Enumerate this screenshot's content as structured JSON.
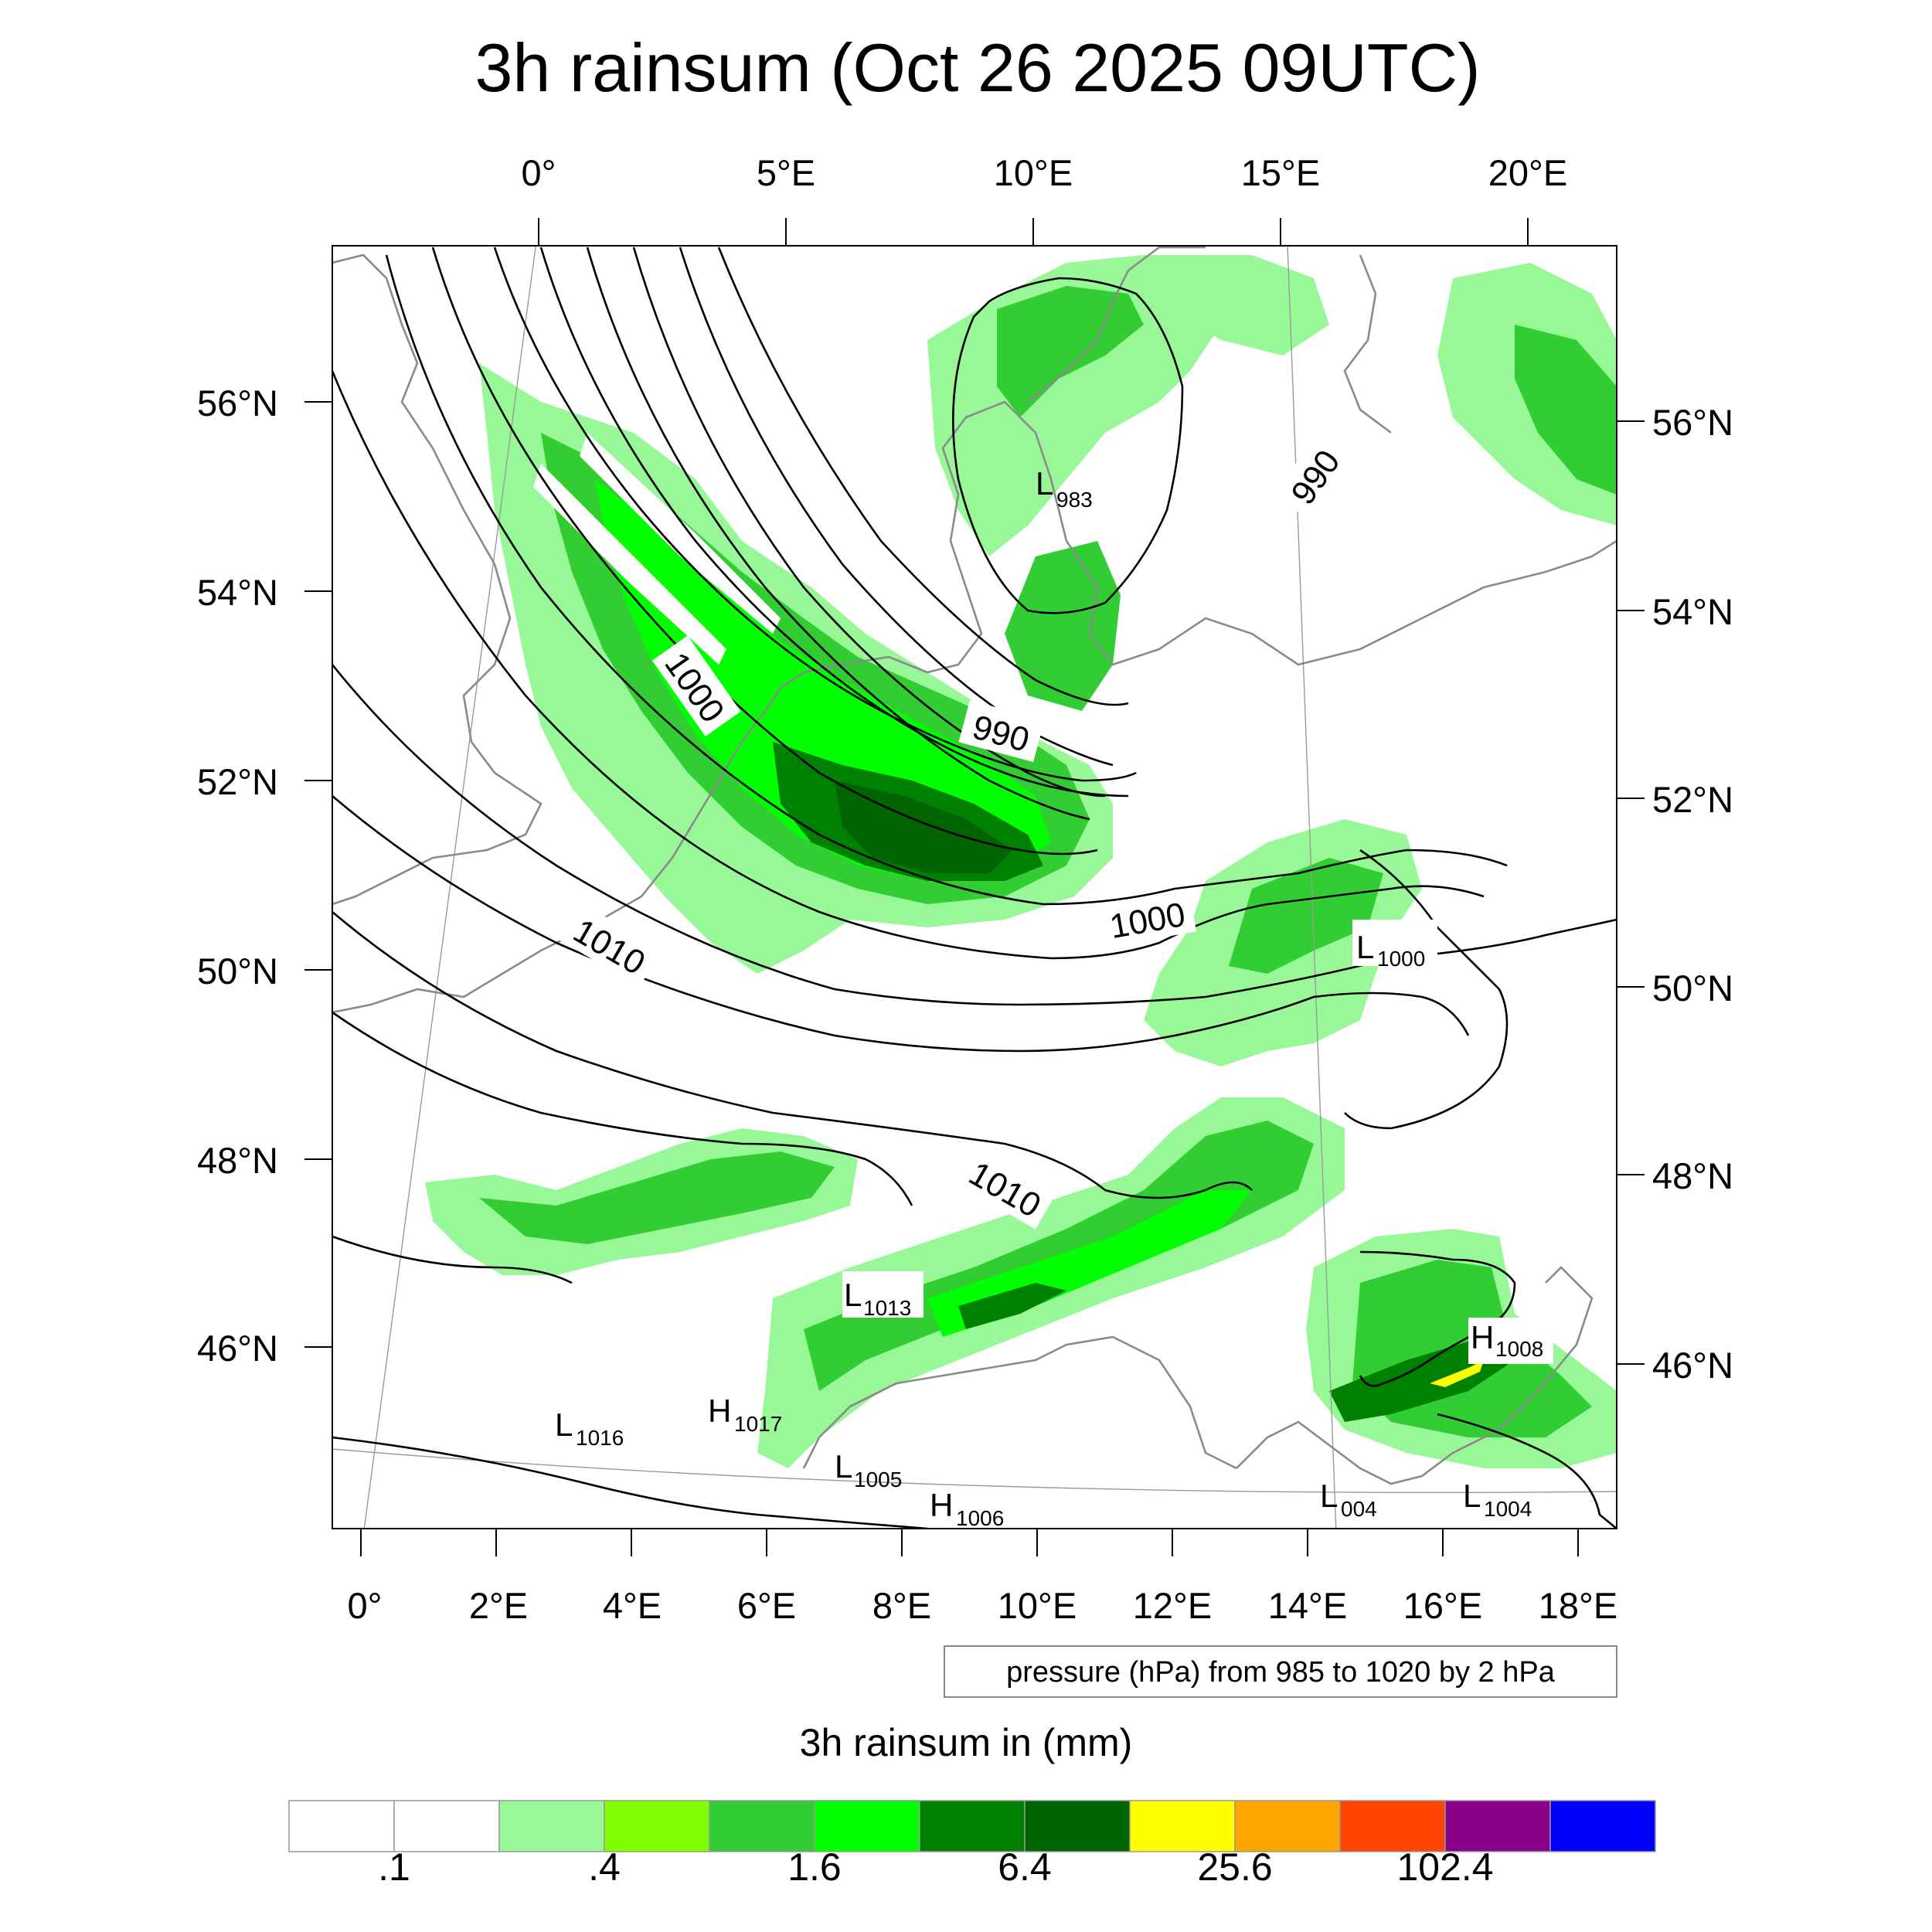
{
  "title": "3h rainsum (Oct 26 2025 09UTC)",
  "map": {
    "top_lon_labels": [
      "0°",
      "5°E",
      "10°E",
      "15°E",
      "20°E"
    ],
    "bottom_lon_labels": [
      "0°",
      "2°E",
      "4°E",
      "6°E",
      "8°E",
      "10°E",
      "12°E",
      "14°E",
      "16°E",
      "18°E"
    ],
    "left_lat_labels": [
      "56°N",
      "54°N",
      "52°N",
      "50°N",
      "48°N",
      "46°N"
    ],
    "right_lat_labels": [
      "56°N",
      "54°N",
      "52°N",
      "50°N",
      "48°N",
      "46°N"
    ],
    "contour_labels": [
      "1000",
      "990",
      "990",
      "1000",
      "1010",
      "1010"
    ],
    "pressure_centers": [
      {
        "type": "L",
        "value": "983"
      },
      {
        "type": "L",
        "value": "1000"
      },
      {
        "type": "L",
        "value": "1013"
      },
      {
        "type": "H",
        "value": "1008"
      },
      {
        "type": "L",
        "value": "1016"
      },
      {
        "type": "H",
        "value": "1017"
      },
      {
        "type": "L",
        "value": "1005"
      },
      {
        "type": "H",
        "value": "1006"
      },
      {
        "type": "L",
        "value": "004"
      },
      {
        "type": "L",
        "value": "1004"
      }
    ],
    "pressure_note": "pressure (hPa) from 985 to 1020 by 2 hPa"
  },
  "colorbar": {
    "title": "3h rainsum in (mm)",
    "colors": [
      "#ffffff",
      "#ffffff",
      "#98f898",
      "#80ff00",
      "#32cd32",
      "#00ff00",
      "#008000",
      "#006400",
      "#ffff00",
      "#ffa500",
      "#ff4500",
      "#8b008b",
      "#0000ff"
    ],
    "labels": [
      ".1",
      ".4",
      "1.6",
      "6.4",
      "25.6",
      "102.4"
    ]
  }
}
